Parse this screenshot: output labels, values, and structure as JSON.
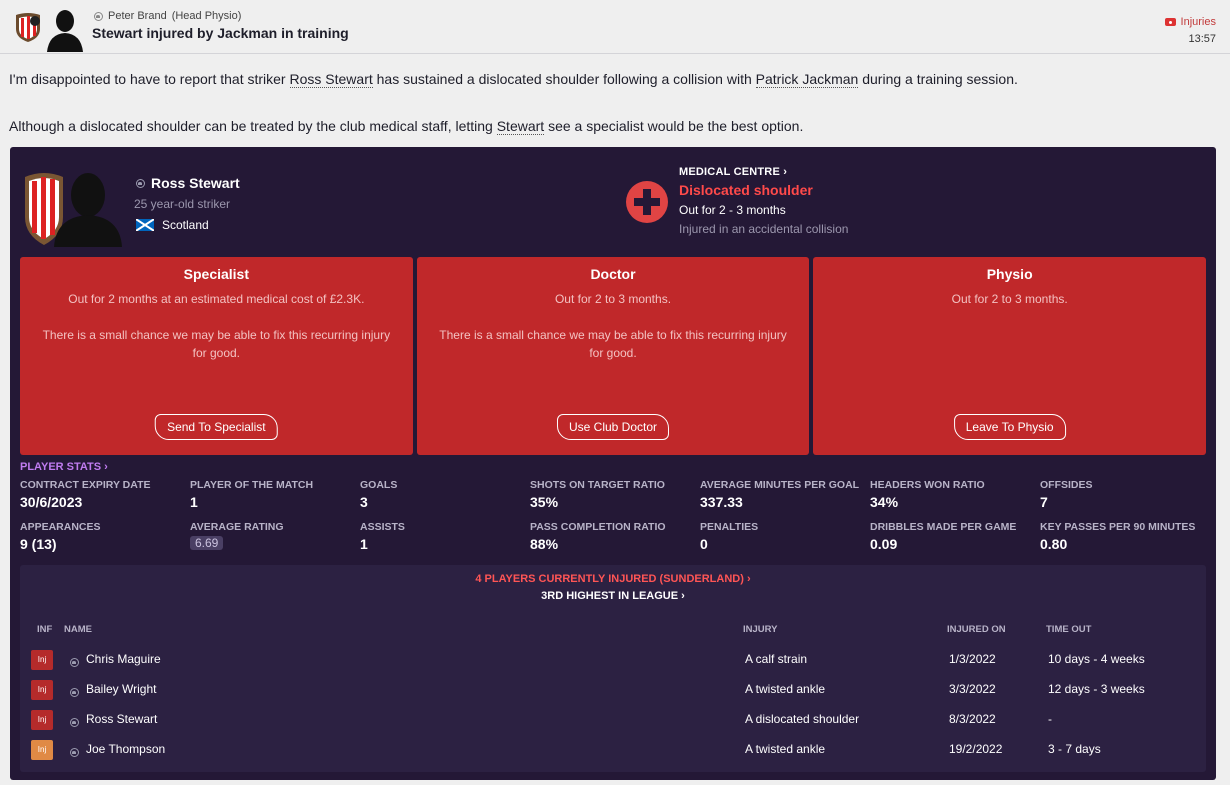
{
  "header": {
    "sender": "Peter Brand",
    "sender_role": "(Head Physio)",
    "subject": "Stewart injured by Jackman in training",
    "category": "Injuries",
    "time": "13:57"
  },
  "body": {
    "p1_before": "I'm disappointed to have to report that striker ",
    "p1_link1": "Ross Stewart",
    "p1_middle": " has sustained a dislocated shoulder following a collision with ",
    "p1_link2": "Patrick Jackman",
    "p1_after": " during a training session.",
    "p2_before": "Although a dislocated shoulder can be treated by the club medical staff, letting ",
    "p2_link": "Stewart",
    "p2_after": " see a specialist would be the best option."
  },
  "player": {
    "name": "Ross Stewart",
    "description": "25 year-old striker",
    "nation": "Scotland"
  },
  "medical": {
    "link": "MEDICAL CENTRE",
    "injury": "Dislocated shoulder",
    "out_for": "Out for 2 - 3 months",
    "cause": "Injured in an accidental collision"
  },
  "options": [
    {
      "title": "Specialist",
      "desc": "Out for 2 months at an estimated medical cost of £2.3K.",
      "note": "There is a small chance we may be able to fix this recurring injury for good.",
      "button": "Send To Specialist"
    },
    {
      "title": "Doctor",
      "desc": "Out for 2 to 3 months.",
      "note": "There is a small chance we may be able to fix this recurring injury for good.",
      "button": "Use Club Doctor"
    },
    {
      "title": "Physio",
      "desc": "Out for 2 to 3 months.",
      "note": "",
      "button": "Leave To Physio"
    }
  ],
  "stats": {
    "link": "PLAYER STATS",
    "items": [
      {
        "label": "CONTRACT EXPIRY DATE",
        "value": "30/6/2023"
      },
      {
        "label": "PLAYER OF THE MATCH",
        "value": "1"
      },
      {
        "label": "GOALS",
        "value": "3"
      },
      {
        "label": "SHOTS ON TARGET RATIO",
        "value": "35%"
      },
      {
        "label": "AVERAGE MINUTES PER GOAL",
        "value": "337.33"
      },
      {
        "label": "HEADERS WON RATIO",
        "value": "34%"
      },
      {
        "label": "OFFSIDES",
        "value": "7"
      },
      {
        "label": "APPEARANCES",
        "value": "9 (13)"
      },
      {
        "label": "AVERAGE RATING",
        "value": "6.69"
      },
      {
        "label": "ASSISTS",
        "value": "1"
      },
      {
        "label": "PASS COMPLETION RATIO",
        "value": "88%"
      },
      {
        "label": "PENALTIES",
        "value": "0"
      },
      {
        "label": "DRIBBLES MADE PER GAME",
        "value": "0.09"
      },
      {
        "label": "KEY PASSES PER 90 MINUTES",
        "value": "0.80"
      }
    ]
  },
  "injured": {
    "title": "4 PLAYERS CURRENTLY INJURED (SUNDERLAND)",
    "subtitle": "3RD HIGHEST IN LEAGUE",
    "headers": {
      "inf": "INF",
      "name": "NAME",
      "injury": "INJURY",
      "injured_on": "INJURED ON",
      "time_out": "TIME OUT"
    },
    "badge": "Inj",
    "rows": [
      {
        "name": "Chris Maguire",
        "injury": "A calf strain",
        "date": "1/3/2022",
        "time_out": "10 days - 4 weeks"
      },
      {
        "name": "Bailey Wright",
        "injury": "A twisted ankle",
        "date": "3/3/2022",
        "time_out": "12 days - 3 weeks"
      },
      {
        "name": "Ross Stewart",
        "injury": "A dislocated shoulder",
        "date": "8/3/2022",
        "time_out": "-"
      },
      {
        "name": "Joe Thompson",
        "injury": "A twisted ankle",
        "date": "19/2/2022",
        "time_out": "3 - 7 days"
      }
    ]
  }
}
